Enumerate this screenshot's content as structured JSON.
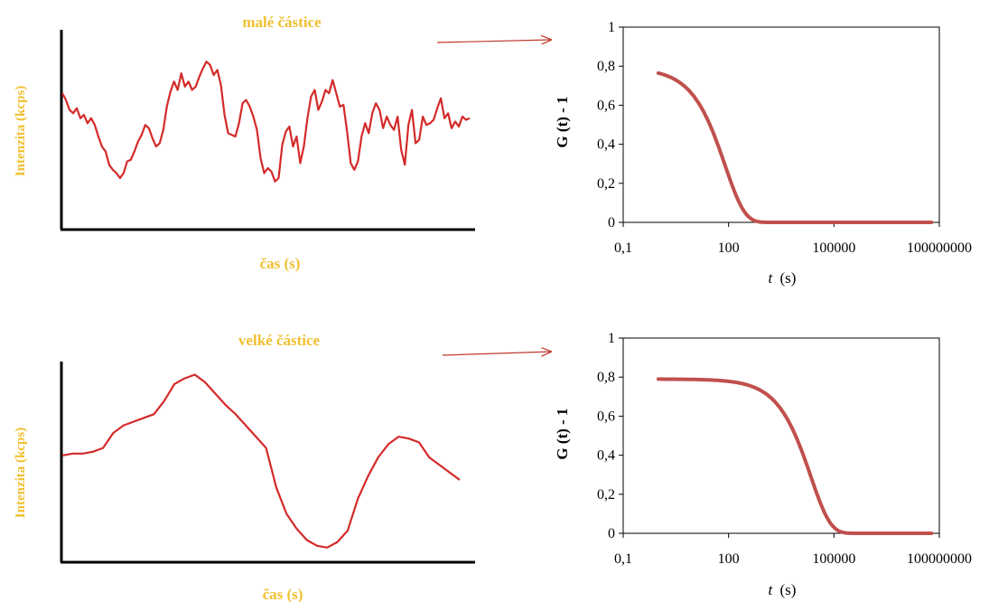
{
  "colors": {
    "signal": "#d42a2a",
    "correlation": "#c0504d",
    "label_yellow": "#f0c030",
    "arrow": "#c0392b"
  },
  "chart_data": [
    {
      "type": "line",
      "title": "malé částice",
      "xlabel": "čas (s)",
      "ylabel": "Intenzita (kcps)",
      "series": [
        {
          "values": [
            0.7,
            0.66,
            0.6,
            0.58,
            0.61,
            0.55,
            0.57,
            0.52,
            0.55,
            0.51,
            0.44,
            0.38,
            0.35,
            0.27,
            0.24,
            0.22,
            0.19,
            0.22,
            0.29,
            0.3,
            0.35,
            0.41,
            0.45,
            0.51,
            0.49,
            0.43,
            0.38,
            0.4,
            0.48,
            0.62,
            0.71,
            0.77,
            0.72,
            0.82,
            0.74,
            0.77,
            0.72,
            0.74,
            0.8,
            0.85,
            0.89,
            0.87,
            0.81,
            0.84,
            0.75,
            0.57,
            0.46,
            0.45,
            0.44,
            0.52,
            0.64,
            0.66,
            0.62,
            0.56,
            0.48,
            0.31,
            0.22,
            0.25,
            0.23,
            0.17,
            0.19,
            0.39,
            0.47,
            0.5,
            0.38,
            0.44,
            0.28,
            0.38,
            0.55,
            0.68,
            0.72,
            0.6,
            0.65,
            0.72,
            0.7,
            0.78,
            0.7,
            0.62,
            0.63,
            0.47,
            0.28,
            0.24,
            0.29,
            0.44,
            0.52,
            0.46,
            0.58,
            0.64,
            0.6,
            0.49,
            0.56,
            0.51,
            0.48,
            0.56,
            0.36,
            0.27,
            0.51,
            0.6,
            0.4,
            0.42,
            0.56,
            0.51,
            0.52,
            0.54,
            0.61,
            0.67,
            0.55,
            0.58,
            0.49,
            0.53,
            0.5,
            0.56,
            0.54,
            0.55
          ]
        }
      ]
    },
    {
      "type": "line",
      "title": "",
      "xlabel": "t (s)",
      "ylabel": "G (t) - 1",
      "x_scale": "log",
      "xlim": [
        0.1,
        100000000
      ],
      "ylim": [
        0,
        1
      ],
      "x_ticks": [
        "0,1",
        "100",
        "100000",
        "100000000"
      ],
      "y_ticks": [
        "0",
        "0,2",
        "0,4",
        "0,6",
        "0,8",
        "1"
      ],
      "grid": false,
      "model": {
        "amplitude": 0.79,
        "decay_time_s": 80
      },
      "series": [
        {
          "x": [
            1,
            10,
            100,
            1000,
            10000,
            100000,
            1000000,
            10000000,
            100000000
          ],
          "y": [
            0.78,
            0.69,
            0.19,
            0.01,
            0.003,
            0.002,
            0.001,
            0.001,
            0.001
          ]
        }
      ]
    },
    {
      "type": "line",
      "title": "velké částice",
      "xlabel": "čas (s)",
      "ylabel": "Intenzita (kcps)",
      "series": [
        {
          "values": [
            0.51,
            0.52,
            0.52,
            0.53,
            0.55,
            0.63,
            0.67,
            0.69,
            0.71,
            0.73,
            0.8,
            0.89,
            0.92,
            0.94,
            0.9,
            0.84,
            0.78,
            0.73,
            0.67,
            0.61,
            0.55,
            0.34,
            0.2,
            0.12,
            0.06,
            0.03,
            0.02,
            0.05,
            0.11,
            0.28,
            0.4,
            0.5,
            0.57,
            0.61,
            0.6,
            0.58,
            0.5,
            0.46,
            0.42,
            0.38
          ]
        }
      ]
    },
    {
      "type": "line",
      "title": "",
      "xlabel": "t (s)",
      "ylabel": "G (t) - 1",
      "x_scale": "log",
      "xlim": [
        0.1,
        100000000
      ],
      "ylim": [
        0,
        1
      ],
      "x_ticks": [
        "0,1",
        "100",
        "100000",
        "100000000"
      ],
      "y_ticks": [
        "0",
        "0,2",
        "0,4",
        "0,6",
        "0,8",
        "1"
      ],
      "grid": false,
      "model": {
        "amplitude": 0.79,
        "decay_time_s": 22000
      },
      "series": [
        {
          "x": [
            1,
            10,
            100,
            1000,
            10000,
            100000,
            1000000,
            10000000,
            100000000
          ],
          "y": [
            0.79,
            0.79,
            0.785,
            0.76,
            0.5,
            0.015,
            0.004,
            0.003,
            0.002
          ]
        }
      ]
    }
  ]
}
